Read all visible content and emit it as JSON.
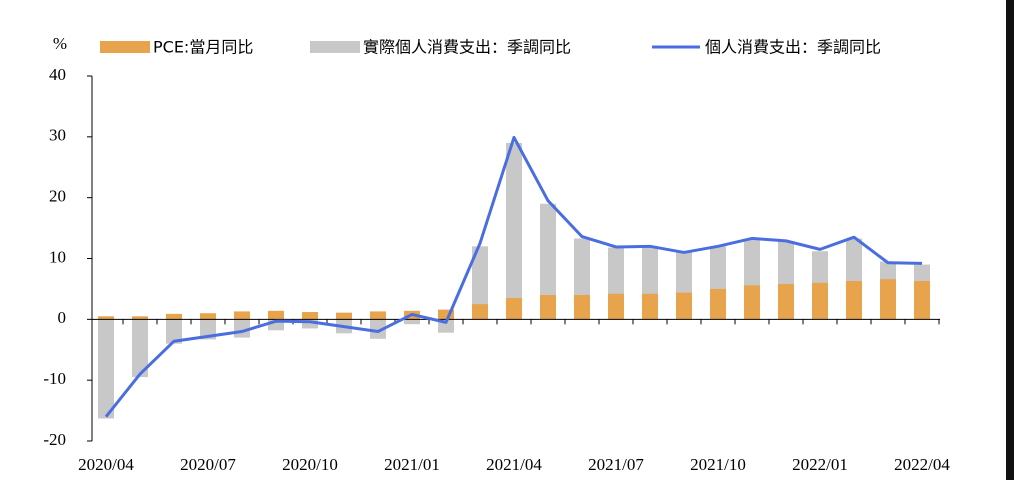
{
  "chart_data": {
    "type": "bar",
    "y_unit": "%",
    "categories": [
      "2020/04",
      null,
      null,
      "2020/07",
      null,
      null,
      "2020/10",
      null,
      null,
      "2021/01",
      null,
      null,
      "2021/04",
      null,
      null,
      "2021/07",
      null,
      null,
      "2021/10",
      null,
      null,
      "2022/01",
      null,
      null,
      "2022/04"
    ],
    "series": [
      {
        "name": "PCE:當月同比",
        "type": "bar",
        "color": "#e8a44c",
        "values": [
          0.5,
          0.5,
          0.9,
          1.0,
          1.3,
          1.4,
          1.2,
          1.1,
          1.3,
          1.4,
          1.6,
          2.5,
          3.5,
          4.0,
          4.0,
          4.2,
          4.2,
          4.4,
          5.0,
          5.6,
          5.8,
          6.0,
          6.3,
          6.6,
          6.3
        ]
      },
      {
        "name": "實際個人消費支出：季調同比",
        "type": "bar",
        "color": "#c8c8c8",
        "values": [
          -16.3,
          -9.5,
          -4.0,
          -3.3,
          -3.0,
          -1.8,
          -1.5,
          -2.3,
          -3.2,
          -0.8,
          -2.2,
          12.0,
          29.0,
          19.0,
          13.3,
          11.8,
          12.0,
          11.0,
          12.0,
          13.2,
          12.8,
          11.2,
          13.3,
          9.5,
          9.0
        ]
      },
      {
        "name": "個人消費支出：季調同比",
        "type": "line",
        "color": "#4a6ee0",
        "values": [
          -16.0,
          -9.0,
          -3.6,
          -2.8,
          -2.0,
          -0.3,
          -0.4,
          -1.2,
          -2.0,
          0.8,
          -0.5,
          12.5,
          29.9,
          19.5,
          13.6,
          11.9,
          12.0,
          11.0,
          12.0,
          13.3,
          12.9,
          11.5,
          13.5,
          9.3,
          9.2
        ]
      }
    ],
    "ylim": [
      -20,
      40
    ],
    "yticks": [
      -20,
      -10,
      0,
      10,
      20,
      30,
      40
    ]
  }
}
